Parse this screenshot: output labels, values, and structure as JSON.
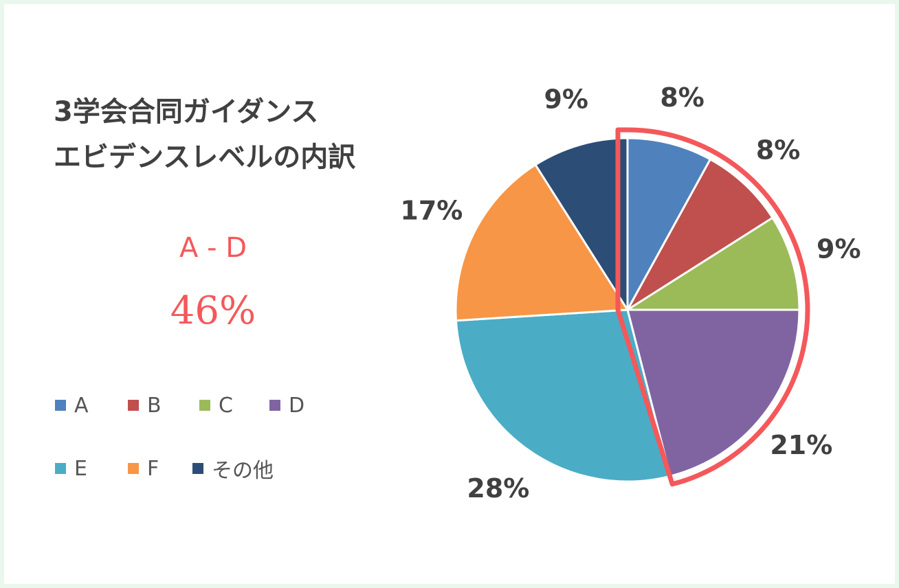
{
  "title_lines": [
    "3学会合同ガイダンス",
    "エビデンスレベルの内訳"
  ],
  "highlight": {
    "label": "A - D",
    "value": "46%",
    "color": "#f4585a"
  },
  "chart_data": {
    "type": "pie",
    "slices": [
      {
        "name": "A",
        "value": 8,
        "label": "8%",
        "color": "#4f81bd"
      },
      {
        "name": "B",
        "value": 8,
        "label": "8%",
        "color": "#c0504d"
      },
      {
        "name": "C",
        "value": 9,
        "label": "9%",
        "color": "#9bbb59"
      },
      {
        "name": "D",
        "value": 21,
        "label": "21%",
        "color": "#8064a2"
      },
      {
        "name": "E",
        "value": 28,
        "label": "28%",
        "color": "#4bacc6"
      },
      {
        "name": "F",
        "value": 17,
        "label": "17%",
        "color": "#f79646"
      },
      {
        "name": "その他",
        "value": 9,
        "label": "9%",
        "color": "#2c4d75"
      }
    ],
    "highlighted_slices": [
      "A",
      "B",
      "C",
      "D"
    ],
    "legend_placement": "left"
  }
}
